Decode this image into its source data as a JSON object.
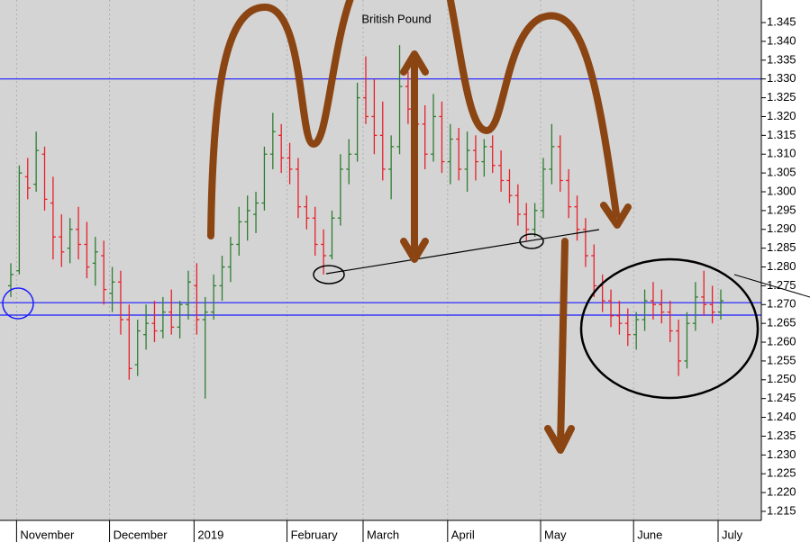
{
  "chart_data": {
    "type": "ohlc",
    "title": "British Pound",
    "categories": [
      null,
      "November",
      null,
      null,
      null,
      null,
      null,
      null,
      null,
      null,
      null,
      null,
      "December",
      null,
      null,
      null,
      null,
      null,
      null,
      null,
      null,
      null,
      "2019",
      null,
      null,
      null,
      null,
      null,
      null,
      null,
      null,
      null,
      null,
      "February",
      null,
      null,
      null,
      null,
      null,
      null,
      null,
      null,
      "March",
      null,
      null,
      null,
      null,
      null,
      null,
      null,
      null,
      null,
      "April",
      null,
      null,
      null,
      null,
      null,
      null,
      null,
      null,
      null,
      null,
      "May",
      null,
      null,
      null,
      null,
      null,
      null,
      null,
      null,
      null,
      null,
      "June",
      null,
      null,
      null,
      null,
      null,
      null,
      null,
      null,
      null,
      "July"
    ],
    "bars": [
      [
        1.275,
        1.281,
        1.272,
        1.278
      ],
      [
        1.279,
        1.307,
        1.278,
        1.305
      ],
      [
        1.304,
        1.309,
        1.298,
        1.301
      ],
      [
        1.302,
        1.316,
        1.3,
        1.311
      ],
      [
        1.31,
        1.312,
        1.295,
        1.298
      ],
      [
        1.297,
        1.304,
        1.282,
        1.288
      ],
      [
        1.288,
        1.294,
        1.28,
        1.284
      ],
      [
        1.285,
        1.293,
        1.281,
        1.29
      ],
      [
        1.29,
        1.296,
        1.282,
        1.286
      ],
      [
        1.286,
        1.292,
        1.277,
        1.28
      ],
      [
        1.281,
        1.288,
        1.275,
        1.284
      ],
      [
        1.283,
        1.287,
        1.27,
        1.274
      ],
      [
        1.273,
        1.28,
        1.268,
        1.276
      ],
      [
        1.276,
        1.279,
        1.262,
        1.266
      ],
      [
        1.266,
        1.27,
        1.25,
        1.253
      ],
      [
        1.254,
        1.266,
        1.251,
        1.263
      ],
      [
        1.262,
        1.27,
        1.258,
        1.265
      ],
      [
        1.265,
        1.271,
        1.26,
        1.263
      ],
      [
        1.263,
        1.272,
        1.261,
        1.268
      ],
      [
        1.268,
        1.274,
        1.262,
        1.264
      ],
      [
        1.264,
        1.271,
        1.261,
        1.27
      ],
      [
        1.27,
        1.279,
        1.266,
        1.276
      ],
      [
        1.275,
        1.281,
        1.262,
        1.266
      ],
      [
        1.266,
        1.272,
        1.245,
        1.268
      ],
      [
        1.268,
        1.278,
        1.266,
        1.275
      ],
      [
        1.275,
        1.283,
        1.271,
        1.28
      ],
      [
        1.28,
        1.288,
        1.276,
        1.286
      ],
      [
        1.286,
        1.296,
        1.283,
        1.292
      ],
      [
        1.292,
        1.299,
        1.287,
        1.295
      ],
      [
        1.294,
        1.3,
        1.289,
        1.297
      ],
      [
        1.297,
        1.312,
        1.295,
        1.31
      ],
      [
        1.31,
        1.321,
        1.306,
        1.316
      ],
      [
        1.315,
        1.318,
        1.305,
        1.309
      ],
      [
        1.309,
        1.313,
        1.302,
        1.306
      ],
      [
        1.306,
        1.309,
        1.293,
        1.296
      ],
      [
        1.296,
        1.299,
        1.29,
        1.293
      ],
      [
        1.293,
        1.296,
        1.283,
        1.286
      ],
      [
        1.286,
        1.29,
        1.278,
        1.283
      ],
      [
        1.283,
        1.295,
        1.282,
        1.293
      ],
      [
        1.293,
        1.31,
        1.291,
        1.306
      ],
      [
        1.306,
        1.314,
        1.302,
        1.31
      ],
      [
        1.31,
        1.329,
        1.308,
        1.325
      ],
      [
        1.325,
        1.336,
        1.318,
        1.32
      ],
      [
        1.32,
        1.33,
        1.31,
        1.315
      ],
      [
        1.315,
        1.324,
        1.303,
        1.306
      ],
      [
        1.306,
        1.315,
        1.298,
        1.312
      ],
      [
        1.312,
        1.339,
        1.31,
        1.328
      ],
      [
        1.328,
        1.332,
        1.318,
        1.322
      ],
      [
        1.322,
        1.33,
        1.313,
        1.318
      ],
      [
        1.318,
        1.323,
        1.306,
        1.31
      ],
      [
        1.31,
        1.326,
        1.308,
        1.32
      ],
      [
        1.32,
        1.324,
        1.305,
        1.308
      ],
      [
        1.308,
        1.318,
        1.302,
        1.314
      ],
      [
        1.314,
        1.317,
        1.303,
        1.306
      ],
      [
        1.306,
        1.316,
        1.3,
        1.311
      ],
      [
        1.311,
        1.315,
        1.303,
        1.308
      ],
      [
        1.308,
        1.314,
        1.304,
        1.312
      ],
      [
        1.312,
        1.315,
        1.305,
        1.307
      ],
      [
        1.307,
        1.311,
        1.3,
        1.303
      ],
      [
        1.303,
        1.306,
        1.297,
        1.299
      ],
      [
        1.299,
        1.302,
        1.291,
        1.294
      ],
      [
        1.294,
        1.297,
        1.287,
        1.29
      ],
      [
        1.29,
        1.297,
        1.288,
        1.295
      ],
      [
        1.295,
        1.309,
        1.293,
        1.306
      ],
      [
        1.306,
        1.318,
        1.302,
        1.312
      ],
      [
        1.312,
        1.315,
        1.3,
        1.303
      ],
      [
        1.303,
        1.306,
        1.293,
        1.296
      ],
      [
        1.296,
        1.299,
        1.287,
        1.29
      ],
      [
        1.29,
        1.293,
        1.28,
        1.283
      ],
      [
        1.283,
        1.286,
        1.272,
        1.275
      ],
      [
        1.275,
        1.278,
        1.268,
        1.271
      ],
      [
        1.271,
        1.274,
        1.264,
        1.267
      ],
      [
        1.267,
        1.271,
        1.262,
        1.265
      ],
      [
        1.265,
        1.269,
        1.259,
        1.262
      ],
      [
        1.262,
        1.268,
        1.258,
        1.266
      ],
      [
        1.266,
        1.274,
        1.263,
        1.271
      ],
      [
        1.271,
        1.276,
        1.266,
        1.27
      ],
      [
        1.27,
        1.274,
        1.265,
        1.268
      ],
      [
        1.268,
        1.271,
        1.26,
        1.263
      ],
      [
        1.263,
        1.266,
        1.251,
        1.255
      ],
      [
        1.255,
        1.268,
        1.253,
        1.265
      ],
      [
        1.265,
        1.276,
        1.263,
        1.272
      ],
      [
        1.272,
        1.279,
        1.267,
        1.27
      ],
      [
        1.27,
        1.275,
        1.265,
        1.268
      ],
      [
        1.268,
        1.274,
        1.266,
        1.271
      ]
    ],
    "up_color": "#2e7d32",
    "down_color": "#e8202a",
    "hlines": [
      1.33,
      1.2705,
      1.2672
    ],
    "hline_color": "#1a1aff",
    "ylim": [
      1.2126,
      1.351
    ],
    "yticks": [
      {
        "value": 1.215,
        "label": "1.215"
      },
      {
        "value": 1.22,
        "label": "1.220"
      },
      {
        "value": 1.225,
        "label": "1.225"
      },
      {
        "value": 1.23,
        "label": "1.230"
      },
      {
        "value": 1.235,
        "label": "1.235"
      },
      {
        "value": 1.24,
        "label": "1.240"
      },
      {
        "value": 1.245,
        "label": "1.245"
      },
      {
        "value": 1.25,
        "label": "1.250"
      },
      {
        "value": 1.255,
        "label": "1.255"
      },
      {
        "value": 1.26,
        "label": "1.260"
      },
      {
        "value": 1.265,
        "label": "1.265"
      },
      {
        "value": 1.27,
        "label": "1.270"
      },
      {
        "value": 1.275,
        "label": "1.275"
      },
      {
        "value": 1.28,
        "label": "1.280"
      },
      {
        "value": 1.285,
        "label": "1.285"
      },
      {
        "value": 1.29,
        "label": "1.290"
      },
      {
        "value": 1.295,
        "label": "1.295"
      },
      {
        "value": 1.3,
        "label": "1.300"
      },
      {
        "value": 1.305,
        "label": "1.305"
      },
      {
        "value": 1.31,
        "label": "1.310"
      },
      {
        "value": 1.315,
        "label": "1.315"
      },
      {
        "value": 1.32,
        "label": "1.320"
      },
      {
        "value": 1.325,
        "label": "1.325"
      },
      {
        "value": 1.33,
        "label": "1.330"
      },
      {
        "value": 1.335,
        "label": "1.335"
      },
      {
        "value": 1.34,
        "label": "1.340"
      },
      {
        "value": 1.345,
        "label": "1.345"
      }
    ]
  }
}
